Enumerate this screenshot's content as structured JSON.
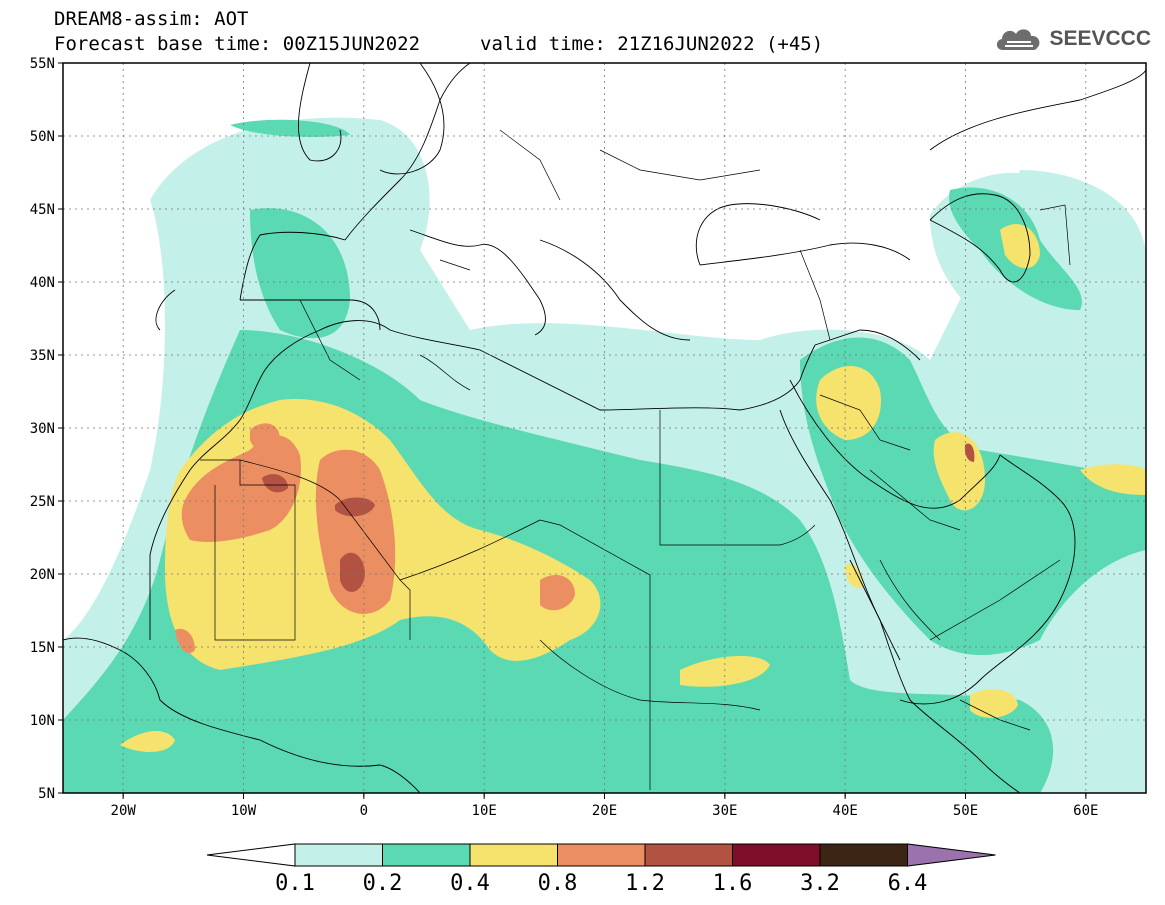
{
  "header": {
    "model_line": "DREAM8-assim: AOT",
    "base_time": "Forecast base time: 00Z15JUN2022",
    "valid_time": "valid time: 21Z16JUN2022 (+45)",
    "logo_text": "SEEVCCC",
    "logo_icon": "cloud-icon"
  },
  "map": {
    "lon_range": [
      -25,
      65
    ],
    "lat_range": [
      5,
      55
    ],
    "lat_ticks": [
      "55N",
      "50N",
      "45N",
      "40N",
      "35N",
      "30N",
      "25N",
      "20N",
      "15N",
      "10N",
      "5N"
    ],
    "lon_ticks": [
      "20W",
      "10W",
      "0",
      "10E",
      "20E",
      "30E",
      "40E",
      "50E",
      "60E"
    ],
    "grid": "dotted"
  },
  "legend": {
    "labels": [
      "0.1",
      "0.2",
      "0.4",
      "0.8",
      "1.2",
      "1.6",
      "3.2",
      "6.4"
    ],
    "colors": [
      "#ffffff",
      "#c4f0ea",
      "#5ad9b2",
      "#f5e36e",
      "#eb8e62",
      "#b15243",
      "#7e0d2a",
      "#3b2616",
      "#9b72ad"
    ]
  }
}
